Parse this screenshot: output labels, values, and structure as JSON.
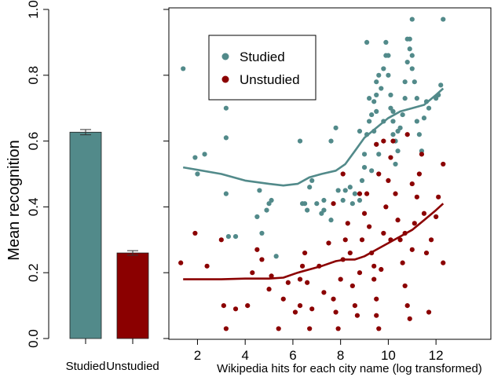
{
  "chart_data": [
    {
      "type": "bar",
      "categories": [
        "Studied",
        "Unstudied"
      ],
      "values": [
        0.627,
        0.26
      ],
      "errors": [
        0.008,
        0.007
      ],
      "colors": [
        "#528a8a",
        "#8b0000"
      ],
      "xlabel": "",
      "ylabel": "Mean recognition",
      "ylim": [
        0,
        1
      ],
      "yticks": [
        "0.0",
        "0.2",
        "0.4",
        "0.6",
        "0.8",
        "1.0"
      ]
    },
    {
      "type": "scatter",
      "xlabel": "Wikipedia hits for each city name (log transformed)",
      "ylabel": "",
      "xlim": [
        0.8,
        14.3
      ],
      "ylim": [
        0,
        1
      ],
      "xticks": [
        "2",
        "4",
        "6",
        "8",
        "10",
        "12"
      ],
      "legend_position": "top-left",
      "series": [
        {
          "name": "Studied",
          "color": "#528a8a",
          "points": [
            [
              1.4,
              0.82
            ],
            [
              1.9,
              0.55
            ],
            [
              2.3,
              0.56
            ],
            [
              2.0,
              0.5
            ],
            [
              3.2,
              0.7
            ],
            [
              3.2,
              0.61
            ],
            [
              3.2,
              0.44
            ],
            [
              3.3,
              0.31
            ],
            [
              3.6,
              0.31
            ],
            [
              4.5,
              0.37
            ],
            [
              4.6,
              0.45
            ],
            [
              4.7,
              0.32
            ],
            [
              4.9,
              0.39
            ],
            [
              5.0,
              0.41
            ],
            [
              5.1,
              0.42
            ],
            [
              5.3,
              0.25
            ],
            [
              6.3,
              0.6
            ],
            [
              6.4,
              0.41
            ],
            [
              6.5,
              0.41
            ],
            [
              6.6,
              0.39
            ],
            [
              6.7,
              0.46
            ],
            [
              6.8,
              0.48
            ],
            [
              7.0,
              0.41
            ],
            [
              7.2,
              0.38
            ],
            [
              7.3,
              0.42
            ],
            [
              7.6,
              0.6
            ],
            [
              7.8,
              0.64
            ],
            [
              7.9,
              0.45
            ],
            [
              7.3,
              0.39
            ],
            [
              7.6,
              0.36
            ],
            [
              8.1,
              0.42
            ],
            [
              8.2,
              0.45
            ],
            [
              8.4,
              0.46
            ],
            [
              8.5,
              0.41
            ],
            [
              8.6,
              0.44
            ],
            [
              8.8,
              0.42
            ],
            [
              8.9,
              0.48
            ],
            [
              9.0,
              0.52
            ],
            [
              9.0,
              0.56
            ],
            [
              9.1,
              0.62
            ],
            [
              9.2,
              0.66
            ],
            [
              9.3,
              0.68
            ],
            [
              9.4,
              0.72
            ],
            [
              9.5,
              0.74
            ],
            [
              9.5,
              0.78
            ],
            [
              9.6,
              0.8
            ],
            [
              9.7,
              0.76
            ],
            [
              9.8,
              0.82
            ],
            [
              9.9,
              0.86
            ],
            [
              9.9,
              0.9
            ],
            [
              10.0,
              0.86
            ],
            [
              10.0,
              0.8
            ],
            [
              10.1,
              0.74
            ],
            [
              10.1,
              0.7
            ],
            [
              10.2,
              0.66
            ],
            [
              10.2,
              0.62
            ],
            [
              10.3,
              0.6
            ],
            [
              10.4,
              0.57
            ],
            [
              10.5,
              0.64
            ],
            [
              10.6,
              0.68
            ],
            [
              10.7,
              0.73
            ],
            [
              10.7,
              0.78
            ],
            [
              10.8,
              0.84
            ],
            [
              10.9,
              0.88
            ],
            [
              10.9,
              0.91
            ],
            [
              11.0,
              0.86
            ],
            [
              11.0,
              0.82
            ],
            [
              11.1,
              0.78
            ],
            [
              11.2,
              0.73
            ],
            [
              11.2,
              0.66
            ],
            [
              11.3,
              0.62
            ],
            [
              11.4,
              0.57
            ],
            [
              11.5,
              0.67
            ],
            [
              11.6,
              0.72
            ],
            [
              11.7,
              0.7
            ],
            [
              12.0,
              0.73
            ],
            [
              12.1,
              0.74
            ],
            [
              12.2,
              0.77
            ],
            [
              12.3,
              0.97
            ],
            [
              11.0,
              0.97
            ],
            [
              10.8,
              0.91
            ],
            [
              10.3,
              0.53
            ],
            [
              9.3,
              0.51
            ],
            [
              9.6,
              0.56
            ],
            [
              9.4,
              0.63
            ],
            [
              8.8,
              0.63
            ],
            [
              9.2,
              0.73
            ],
            [
              9.5,
              0.69
            ],
            [
              10.2,
              0.69
            ],
            [
              9.1,
              0.9
            ],
            [
              9.5,
              0.59
            ],
            [
              9.8,
              0.66
            ],
            [
              10.4,
              0.63
            ]
          ]
        },
        {
          "name": "Unstudied",
          "color": "#8b0000",
          "points": [
            [
              1.3,
              0.23
            ],
            [
              1.9,
              0.32
            ],
            [
              2.4,
              0.22
            ],
            [
              3.0,
              0.3
            ],
            [
              3.1,
              0.1
            ],
            [
              3.2,
              0.03
            ],
            [
              3.6,
              0.09
            ],
            [
              4.1,
              0.1
            ],
            [
              4.3,
              0.2
            ],
            [
              4.5,
              0.27
            ],
            [
              4.7,
              0.24
            ],
            [
              5.0,
              0.15
            ],
            [
              5.1,
              0.19
            ],
            [
              5.4,
              0.03
            ],
            [
              5.6,
              0.12
            ],
            [
              5.8,
              0.17
            ],
            [
              6.1,
              0.08
            ],
            [
              6.3,
              0.1
            ],
            [
              6.3,
              0.18
            ],
            [
              6.4,
              0.22
            ],
            [
              6.5,
              0.26
            ],
            [
              6.6,
              0.17
            ],
            [
              6.7,
              0.03
            ],
            [
              6.8,
              0.09
            ],
            [
              7.1,
              0.22
            ],
            [
              7.3,
              0.14
            ],
            [
              7.5,
              0.29
            ],
            [
              7.7,
              0.12
            ],
            [
              7.8,
              0.08
            ],
            [
              7.9,
              0.03
            ],
            [
              8.0,
              0.18
            ],
            [
              8.1,
              0.24
            ],
            [
              8.2,
              0.3
            ],
            [
              8.3,
              0.35
            ],
            [
              8.4,
              0.26
            ],
            [
              8.5,
              0.16
            ],
            [
              8.6,
              0.1
            ],
            [
              8.7,
              0.07
            ],
            [
              8.8,
              0.2
            ],
            [
              8.9,
              0.3
            ],
            [
              9.0,
              0.38
            ],
            [
              9.1,
              0.44
            ],
            [
              9.2,
              0.34
            ],
            [
              9.3,
              0.26
            ],
            [
              9.4,
              0.18
            ],
            [
              9.5,
              0.12
            ],
            [
              9.5,
              0.07
            ],
            [
              9.6,
              0.03
            ],
            [
              9.7,
              0.21
            ],
            [
              9.8,
              0.32
            ],
            [
              9.9,
              0.4
            ],
            [
              10.0,
              0.48
            ],
            [
              10.1,
              0.55
            ],
            [
              10.2,
              0.6
            ],
            [
              10.3,
              0.44
            ],
            [
              10.4,
              0.36
            ],
            [
              10.5,
              0.3
            ],
            [
              10.6,
              0.23
            ],
            [
              10.7,
              0.16
            ],
            [
              10.8,
              0.1
            ],
            [
              10.9,
              0.06
            ],
            [
              11.0,
              0.27
            ],
            [
              11.1,
              0.35
            ],
            [
              11.2,
              0.43
            ],
            [
              11.3,
              0.5
            ],
            [
              11.4,
              0.56
            ],
            [
              11.5,
              0.38
            ],
            [
              11.6,
              0.26
            ],
            [
              11.7,
              0.08
            ],
            [
              11.8,
              0.3
            ],
            [
              12.0,
              0.37
            ],
            [
              12.1,
              0.43
            ],
            [
              12.3,
              0.53
            ],
            [
              12.3,
              0.23
            ],
            [
              9.8,
              0.6
            ],
            [
              10.8,
              0.62
            ],
            [
              9.5,
              0.59
            ],
            [
              11.0,
              0.47
            ],
            [
              9.6,
              0.5
            ],
            [
              8.8,
              0.44
            ],
            [
              10.1,
              0.3
            ],
            [
              10.7,
              0.32
            ],
            [
              9.4,
              0.22
            ],
            [
              7.7,
              0.41
            ],
            [
              8.1,
              0.5
            ]
          ]
        }
      ],
      "smooth_fits": [
        {
          "series": "Studied",
          "x": [
            1.4,
            3.0,
            4.0,
            5.0,
            5.6,
            6.2,
            6.7,
            7.2,
            7.8,
            8.2,
            8.6,
            9.0,
            9.5,
            10.0,
            10.5,
            11.0,
            11.5,
            12.0,
            12.3
          ],
          "y": [
            0.52,
            0.5,
            0.48,
            0.47,
            0.465,
            0.47,
            0.49,
            0.5,
            0.51,
            0.53,
            0.57,
            0.61,
            0.64,
            0.67,
            0.69,
            0.7,
            0.71,
            0.74,
            0.76
          ]
        },
        {
          "series": "Unstudied",
          "x": [
            1.4,
            3.0,
            4.0,
            5.0,
            5.6,
            6.2,
            6.7,
            7.2,
            7.8,
            8.2,
            8.6,
            9.0,
            9.5,
            10.0,
            10.5,
            11.0,
            11.5,
            12.0,
            12.3
          ],
          "y": [
            0.18,
            0.18,
            0.182,
            0.182,
            0.185,
            0.2,
            0.21,
            0.22,
            0.235,
            0.24,
            0.24,
            0.25,
            0.27,
            0.29,
            0.31,
            0.33,
            0.36,
            0.39,
            0.41
          ]
        }
      ]
    }
  ]
}
